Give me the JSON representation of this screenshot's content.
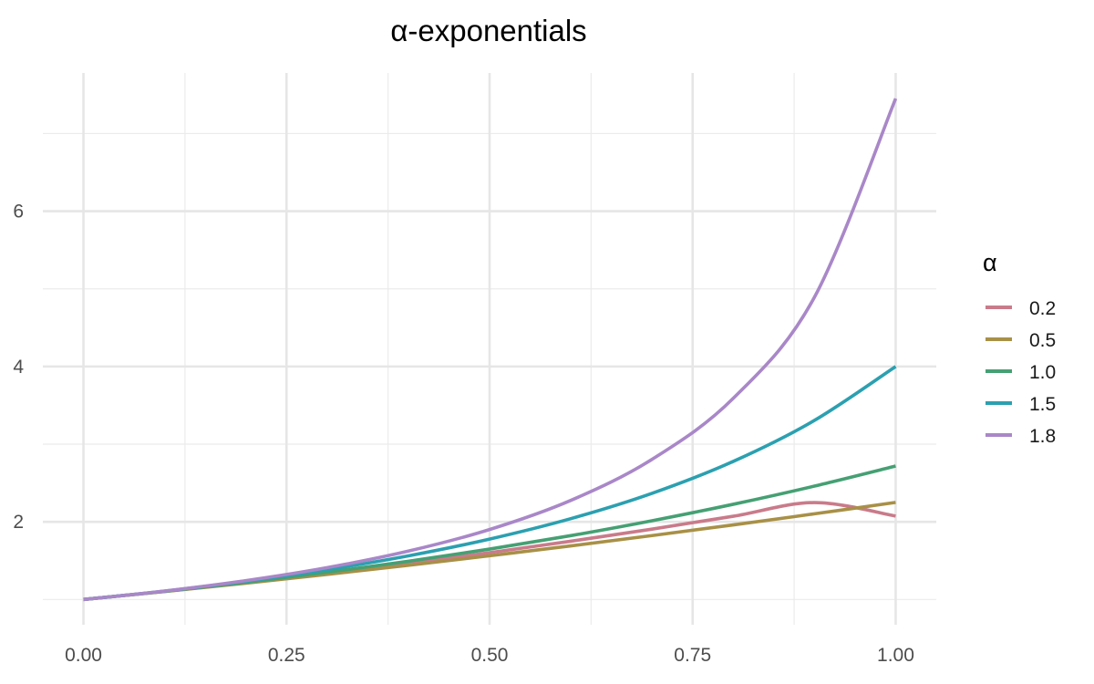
{
  "chart_data": {
    "type": "line",
    "title": "α-exponentials",
    "xlabel": "",
    "ylabel": "",
    "xlim": [
      -0.05,
      1.05
    ],
    "ylim": [
      0.675,
      7.78
    ],
    "x_ticks": [
      0.0,
      0.25,
      0.5,
      0.75,
      1.0
    ],
    "x_tick_labels": [
      "0.00",
      "0.25",
      "0.50",
      "0.75",
      "1.00"
    ],
    "x_minor_ticks": [
      0.125,
      0.375,
      0.625,
      0.875
    ],
    "y_ticks": [
      2,
      4,
      6
    ],
    "y_tick_labels": [
      "2",
      "4",
      "6"
    ],
    "y_minor_ticks": [
      1,
      3,
      5,
      7
    ],
    "grid": true,
    "legend": {
      "title": "α",
      "position": "right"
    },
    "x": [
      0.0,
      0.1,
      0.2,
      0.3,
      0.4,
      0.5,
      0.6,
      0.7,
      0.8,
      0.9,
      1.0
    ],
    "series": [
      {
        "name": "0.2",
        "color": "#c97b8a",
        "values": [
          1.0,
          1.104,
          1.216,
          1.336,
          1.465,
          1.603,
          1.75,
          1.906,
          2.072,
          2.248,
          2.074
        ]
      },
      {
        "name": "0.5",
        "color": "#a89046",
        "values": [
          1.0,
          1.103,
          1.21,
          1.323,
          1.44,
          1.563,
          1.69,
          1.823,
          1.96,
          2.103,
          2.25
        ]
      },
      {
        "name": "1.0",
        "color": "#45a073",
        "values": [
          1.0,
          1.105,
          1.221,
          1.35,
          1.492,
          1.649,
          1.822,
          2.014,
          2.226,
          2.46,
          2.718
        ]
      },
      {
        "name": "1.5",
        "color": "#2ba0b0",
        "values": [
          1.0,
          1.108,
          1.235,
          1.384,
          1.562,
          1.778,
          2.041,
          2.367,
          2.778,
          3.306,
          4.0
        ]
      },
      {
        "name": "1.8",
        "color": "#a987c8",
        "values": [
          1.0,
          1.109,
          1.243,
          1.41,
          1.623,
          1.901,
          2.276,
          2.804,
          3.59,
          4.892,
          7.45
        ]
      }
    ]
  }
}
